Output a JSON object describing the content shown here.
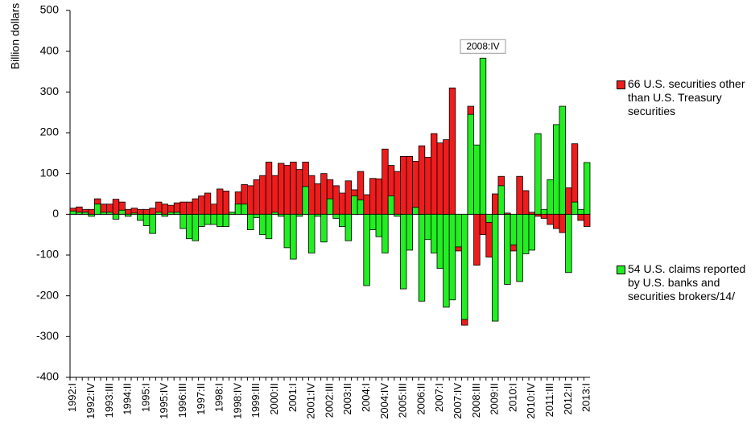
{
  "chart_data": {
    "type": "bar",
    "y_label": "Billion dollars",
    "categories": [
      "1992:I",
      null,
      null,
      "1992:IV",
      null,
      null,
      "1993:III",
      null,
      null,
      "1994:II",
      null,
      null,
      "1995:I",
      null,
      null,
      "1995:IV",
      null,
      null,
      "1996:III",
      null,
      null,
      "1997:II",
      null,
      null,
      "1998:I",
      null,
      null,
      "1998:IV",
      null,
      null,
      "1999:III",
      null,
      null,
      "2000:II",
      null,
      null,
      "2001:I",
      null,
      null,
      "2001:IV",
      null,
      null,
      "2002:III",
      null,
      null,
      "2003:II",
      null,
      null,
      "2004:I",
      null,
      null,
      "2004:IV",
      null,
      null,
      "2005:III",
      null,
      null,
      "2006:II",
      null,
      null,
      "2007:I",
      null,
      null,
      "2007:IV",
      null,
      null,
      "2008:III",
      null,
      null,
      "2009:II",
      null,
      null,
      "2010:I",
      null,
      null,
      "2010:IV",
      null,
      null,
      "2011:III",
      null,
      null,
      "2012:II",
      null,
      null,
      "2013:I"
    ],
    "series": [
      {
        "name": "66 U.S. securities other than U.S. Treasury securities",
        "color": "#ee1c1c",
        "values": [
          15,
          18,
          12,
          12,
          38,
          25,
          25,
          37,
          30,
          12,
          15,
          12,
          12,
          15,
          30,
          25,
          22,
          28,
          30,
          30,
          38,
          45,
          52,
          25,
          62,
          57,
          5,
          55,
          73,
          70,
          85,
          95,
          128,
          95,
          125,
          120,
          128,
          110,
          128,
          95,
          75,
          100,
          85,
          70,
          52,
          82,
          60,
          105,
          48,
          88,
          87,
          160,
          120,
          105,
          142,
          142,
          130,
          168,
          140,
          198,
          175,
          183,
          310,
          -90,
          -272,
          265,
          -125,
          -50,
          -105,
          50,
          93,
          3,
          -90,
          93,
          58,
          5,
          -5,
          -10,
          -25,
          -35,
          -45,
          65,
          173,
          -15,
          -30
        ]
      },
      {
        "name": "54 U.S. claims reported by U.S. banks and securities brokers/14/",
        "color": "#22ee22",
        "values": [
          8,
          5,
          5,
          -5,
          25,
          5,
          5,
          -12,
          10,
          -5,
          3,
          -15,
          -28,
          -47,
          5,
          -5,
          5,
          5,
          -35,
          -60,
          -65,
          -30,
          -25,
          -25,
          -30,
          -30,
          5,
          25,
          25,
          -38,
          -8,
          -50,
          -60,
          5,
          -5,
          -82,
          -110,
          -5,
          68,
          -95,
          -5,
          -68,
          38,
          -10,
          -30,
          -65,
          45,
          35,
          -175,
          -38,
          -55,
          -95,
          45,
          -5,
          -183,
          -88,
          17,
          -213,
          -62,
          -95,
          -133,
          -228,
          -210,
          -80,
          -258,
          245,
          170,
          383,
          -20,
          -262,
          70,
          -172,
          -75,
          -165,
          -97,
          -88,
          198,
          12,
          85,
          220,
          265,
          -143,
          30,
          12,
          127
        ]
      }
    ],
    "annotation": "2008:IV",
    "ylim": [
      -400,
      500
    ],
    "yticks": [
      -400,
      -300,
      -200,
      -100,
      0,
      100,
      200,
      300,
      400,
      500
    ]
  }
}
